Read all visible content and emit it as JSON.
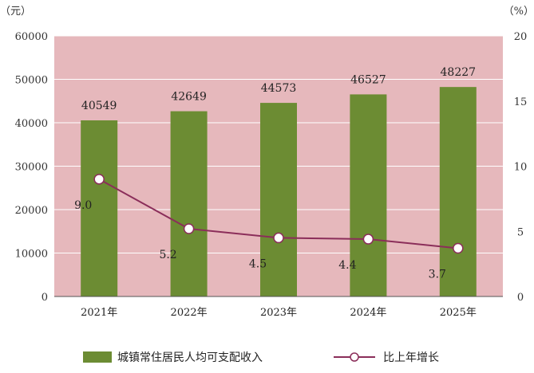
{
  "chart_data": {
    "type": "bar",
    "categories": [
      "2021年",
      "2022年",
      "2023年",
      "2024年",
      "2025年"
    ],
    "series": [
      {
        "name": "城镇常住居民人均可支配收入",
        "type": "bar",
        "axis": "left",
        "values": [
          40549,
          42649,
          44573,
          46527,
          48227
        ],
        "labels": [
          "40549",
          "42649",
          "44573",
          "46527",
          "48227"
        ]
      },
      {
        "name": "比上年增长",
        "type": "line",
        "axis": "right",
        "values": [
          9.0,
          5.2,
          4.5,
          4.4,
          3.7
        ],
        "labels": [
          "9.0",
          "5.2",
          "4.5",
          "4.4",
          "3.7"
        ]
      }
    ],
    "y_left": {
      "unit": "（元）",
      "ylim": [
        0,
        60000
      ],
      "ticks": [
        "0",
        "10000",
        "20000",
        "30000",
        "40000",
        "50000",
        "60000"
      ]
    },
    "y_right": {
      "unit": "（%）",
      "ylim": [
        0,
        20
      ],
      "ticks": [
        "0",
        "5",
        "10",
        "15",
        "20"
      ]
    },
    "grid": true,
    "legend": "bottom",
    "colors": {
      "plot_background": "#E6B8BC",
      "gridline": "#FFFFFF",
      "bar": "#6C8C33",
      "line": "#8B2E5A",
      "marker_fill": "#FFFFFF"
    }
  }
}
